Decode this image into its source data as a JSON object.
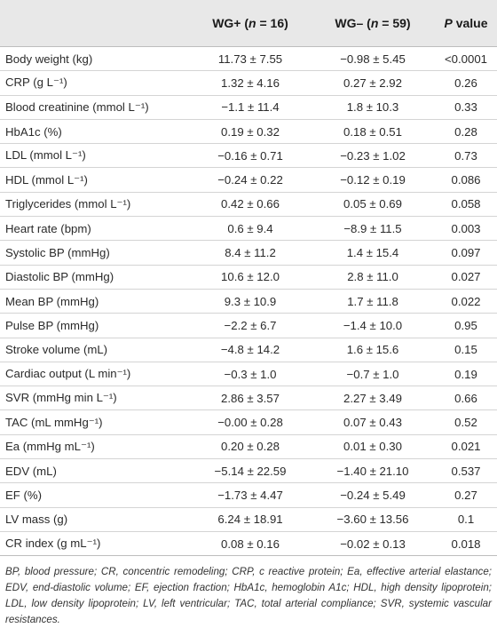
{
  "header": {
    "col0": "",
    "col1_prefix": "WG+ (",
    "col1_n": "n",
    "col1_suffix": " = 16)",
    "col2_prefix": "WG– (",
    "col2_n": "n",
    "col2_suffix": " = 59)",
    "col3_p": "P",
    "col3_suffix": " value"
  },
  "rows": [
    {
      "label": "Body weight (kg)",
      "wgplus": "11.73 ± 7.55",
      "wgminus": "−0.98 ± 5.45",
      "p": "<0.0001"
    },
    {
      "label": "CRP (g L⁻¹)",
      "wgplus": "1.32 ± 4.16",
      "wgminus": "0.27 ± 2.92",
      "p": "0.26"
    },
    {
      "label": "Blood creatinine (mmol L⁻¹)",
      "wgplus": "−1.1 ± 11.4",
      "wgminus": "1.8 ± 10.3",
      "p": "0.33"
    },
    {
      "label": "HbA1c (%)",
      "wgplus": "0.19 ± 0.32",
      "wgminus": "0.18 ± 0.51",
      "p": "0.28"
    },
    {
      "label": "LDL (mmol L⁻¹)",
      "wgplus": "−0.16 ± 0.71",
      "wgminus": "−0.23 ± 1.02",
      "p": "0.73"
    },
    {
      "label": "HDL (mmol L⁻¹)",
      "wgplus": "−0.24 ± 0.22",
      "wgminus": "−0.12 ± 0.19",
      "p": "0.086"
    },
    {
      "label": "Triglycerides (mmol L⁻¹)",
      "wgplus": "0.42 ± 0.66",
      "wgminus": "0.05 ± 0.69",
      "p": "0.058"
    },
    {
      "label": "Heart rate (bpm)",
      "wgplus": "0.6 ± 9.4",
      "wgminus": "−8.9 ± 11.5",
      "p": "0.003"
    },
    {
      "label": "Systolic BP (mmHg)",
      "wgplus": "8.4 ± 11.2",
      "wgminus": "1.4 ± 15.4",
      "p": "0.097"
    },
    {
      "label": "Diastolic BP (mmHg)",
      "wgplus": "10.6 ± 12.0",
      "wgminus": "2.8 ± 11.0",
      "p": "0.027"
    },
    {
      "label": "Mean BP (mmHg)",
      "wgplus": "9.3 ± 10.9",
      "wgminus": "1.7 ± 11.8",
      "p": "0.022"
    },
    {
      "label": "Pulse BP (mmHg)",
      "wgplus": "−2.2 ± 6.7",
      "wgminus": "−1.4 ± 10.0",
      "p": "0.95"
    },
    {
      "label": "Stroke volume (mL)",
      "wgplus": "−4.8 ± 14.2",
      "wgminus": "1.6 ± 15.6",
      "p": "0.15"
    },
    {
      "label": "Cardiac output (L min⁻¹)",
      "wgplus": "−0.3 ± 1.0",
      "wgminus": "−0.7 ± 1.0",
      "p": "0.19"
    },
    {
      "label": "SVR (mmHg min L⁻¹)",
      "wgplus": "2.86 ± 3.57",
      "wgminus": "2.27 ± 3.49",
      "p": "0.66"
    },
    {
      "label": "TAC (mL mmHg⁻¹)",
      "wgplus": "−0.00 ± 0.28",
      "wgminus": "0.07 ± 0.43",
      "p": "0.52"
    },
    {
      "label": "Ea (mmHg mL⁻¹)",
      "wgplus": "0.20 ± 0.28",
      "wgminus": "0.01 ± 0.30",
      "p": "0.021"
    },
    {
      "label": "EDV (mL)",
      "wgplus": "−5.14 ± 22.59",
      "wgminus": "−1.40 ± 21.10",
      "p": "0.537"
    },
    {
      "label": "EF (%)",
      "wgplus": "−1.73 ± 4.47",
      "wgminus": "−0.24 ± 5.49",
      "p": "0.27"
    },
    {
      "label": "LV mass (g)",
      "wgplus": "6.24 ± 18.91",
      "wgminus": "−3.60 ± 13.56",
      "p": "0.1"
    },
    {
      "label": "CR index (g mL⁻¹)",
      "wgplus": "0.08 ± 0.16",
      "wgminus": "−0.02 ± 0.13",
      "p": "0.018"
    }
  ],
  "footnote": "BP, blood pressure; CR, concentric remodeling; CRP, c reactive protein; Ea, effective arterial elastance; EDV, end-diastolic volume; EF, ejection fraction; HbA1c, hemoglobin A1c; HDL, high density lipoprotein; LDL, low density lipoprotein; LV, left ventricular; TAC, total arterial compliance; SVR, systemic vascular resistances."
}
